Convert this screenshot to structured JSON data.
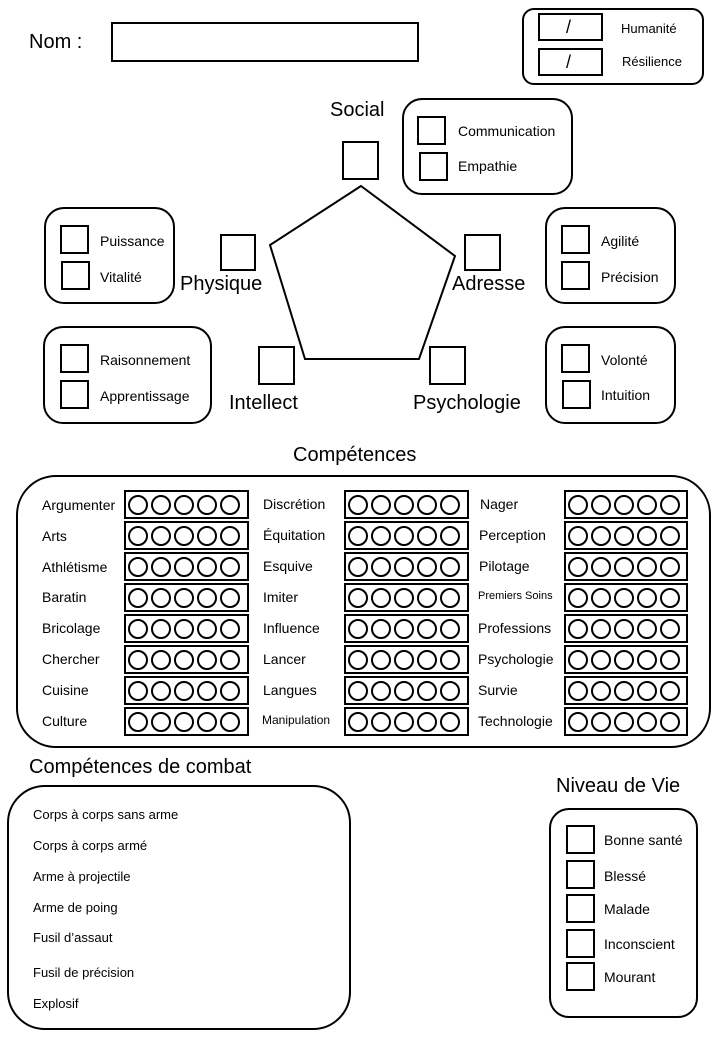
{
  "header": {
    "name_label": "Nom :",
    "name_value": ""
  },
  "status": [
    {
      "slash": "/",
      "label": "Humanité"
    },
    {
      "slash": "/",
      "label": "Résilience"
    }
  ],
  "attributes": {
    "social": {
      "label": "Social",
      "subs": [
        "Communication",
        "Empathie"
      ]
    },
    "physique": {
      "label": "Physique",
      "subs": [
        "Puissance",
        "Vitalité"
      ]
    },
    "adresse": {
      "label": "Adresse",
      "subs": [
        "Agilité",
        "Précision"
      ]
    },
    "intellect": {
      "label": "Intellect",
      "subs": [
        "Raisonnement",
        "Apprentissage"
      ]
    },
    "psychologie": {
      "label": "Psychologie",
      "subs": [
        "Volonté",
        "Intuition"
      ]
    }
  },
  "competences": {
    "title": "Compétences",
    "col1": [
      "Argumenter",
      "Arts",
      "Athlétisme",
      "Baratin",
      "Bricolage",
      "Chercher",
      "Cuisine",
      "Culture"
    ],
    "col2": [
      "Discrétion",
      "Équitation",
      "Esquive",
      "Imiter",
      "Influence",
      "Lancer",
      "Langues",
      "Manipulation"
    ],
    "col3": [
      "Nager",
      "Perception",
      "Pilotage",
      "Premiers Soins",
      "Professions",
      "Psychologie",
      "Survie",
      "Technologie"
    ]
  },
  "combat": {
    "title": "Compétences de combat",
    "skills": [
      "Corps à corps sans arme",
      "Corps à corps armé",
      "Arme à projectile",
      "Arme de poing",
      "Fusil d’assaut",
      "Fusil de précision",
      "Explosif"
    ]
  },
  "vie": {
    "title": "Niveau de Vie",
    "levels": [
      "Bonne santé",
      "Blessé",
      "Malade",
      "Inconscient",
      "Mourant"
    ]
  }
}
